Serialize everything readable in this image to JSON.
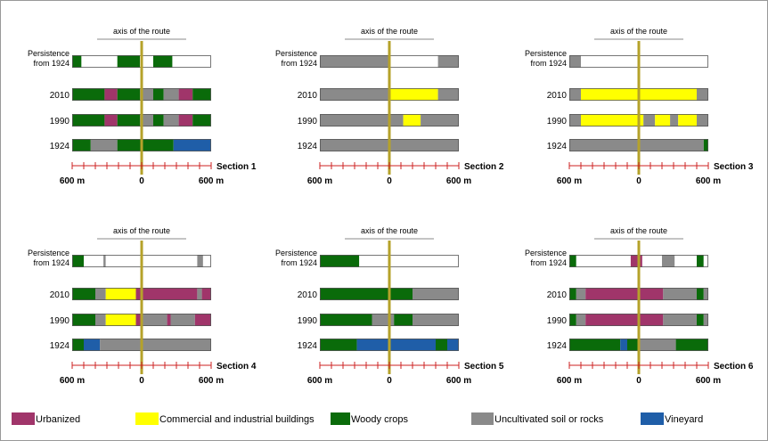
{
  "figure": {
    "axis_label": "axis of the route",
    "row_labels": [
      "Persistence\nfrom 1924",
      "2010",
      "1990",
      "1924"
    ],
    "scale_labels": {
      "left": "600 m",
      "center": "0",
      "right": "600 m"
    }
  },
  "colors": {
    "urbanized": "#a0356a",
    "commercial": "#ffff00",
    "woody": "#0a6b0a",
    "uncultivated": "#8a8a8a",
    "vineyard": "#1f5ea8",
    "empty": "#ffffff",
    "axis_line": "#b5a22a",
    "scale": "#cc2222"
  },
  "legend": [
    {
      "key": "urbanized",
      "label": "Urbanized"
    },
    {
      "key": "commercial",
      "label": "Commercial and industrial buildings"
    },
    {
      "key": "woody",
      "label": "Woody crops"
    },
    {
      "key": "uncultivated",
      "label": "Uncultivated soil or rocks"
    },
    {
      "key": "vineyard",
      "label": "Vineyard"
    }
  ],
  "sections": [
    {
      "title": "Section 1",
      "rows": {
        "persistence": [
          [
            "woody",
            -600,
            -520
          ],
          [
            "empty",
            -520,
            -210
          ],
          [
            "woody",
            -210,
            -15
          ],
          [
            "empty",
            -15,
            100
          ],
          [
            "woody",
            100,
            265
          ],
          [
            "empty",
            265,
            600
          ]
        ],
        "2010": [
          [
            "woody",
            -600,
            -320
          ],
          [
            "urbanized",
            -320,
            -210
          ],
          [
            "woody",
            -210,
            -15
          ],
          [
            "uncultivated",
            -15,
            100
          ],
          [
            "woody",
            100,
            190
          ],
          [
            "uncultivated",
            190,
            320
          ],
          [
            "urbanized",
            320,
            440
          ],
          [
            "woody",
            440,
            600
          ]
        ],
        "1990": [
          [
            "woody",
            -600,
            -320
          ],
          [
            "urbanized",
            -320,
            -210
          ],
          [
            "woody",
            -210,
            -15
          ],
          [
            "uncultivated",
            -15,
            100
          ],
          [
            "woody",
            100,
            190
          ],
          [
            "uncultivated",
            190,
            320
          ],
          [
            "urbanized",
            320,
            440
          ],
          [
            "woody",
            440,
            600
          ]
        ],
        "1924": [
          [
            "woody",
            -600,
            -440
          ],
          [
            "uncultivated",
            -440,
            -210
          ],
          [
            "woody",
            -210,
            275
          ],
          [
            "vineyard",
            275,
            600
          ]
        ]
      }
    },
    {
      "title": "Section 2",
      "rows": {
        "persistence": [
          [
            "uncultivated",
            -600,
            -10
          ],
          [
            "empty",
            -10,
            420
          ],
          [
            "uncultivated",
            420,
            600
          ]
        ],
        "2010": [
          [
            "uncultivated",
            -600,
            0
          ],
          [
            "commercial",
            0,
            420
          ],
          [
            "uncultivated",
            420,
            600
          ]
        ],
        "1990": [
          [
            "uncultivated",
            -600,
            120
          ],
          [
            "commercial",
            120,
            270
          ],
          [
            "uncultivated",
            270,
            600
          ]
        ],
        "1924": [
          [
            "uncultivated",
            -600,
            600
          ]
        ]
      }
    },
    {
      "title": "Section 3",
      "rows": {
        "persistence": [
          [
            "uncultivated",
            -600,
            -500
          ],
          [
            "empty",
            -500,
            600
          ]
        ],
        "2010": [
          [
            "uncultivated",
            -600,
            -500
          ],
          [
            "commercial",
            -500,
            500
          ],
          [
            "uncultivated",
            500,
            600
          ]
        ],
        "1990": [
          [
            "uncultivated",
            -600,
            -500
          ],
          [
            "commercial",
            -500,
            40
          ],
          [
            "uncultivated",
            40,
            140
          ],
          [
            "commercial",
            140,
            270
          ],
          [
            "uncultivated",
            270,
            340
          ],
          [
            "commercial",
            340,
            500
          ],
          [
            "uncultivated",
            500,
            600
          ]
        ],
        "1924": [
          [
            "uncultivated",
            -600,
            560
          ],
          [
            "woody",
            560,
            600
          ]
        ]
      }
    },
    {
      "title": "Section 4",
      "rows": {
        "persistence": [
          [
            "woody",
            -600,
            -500
          ],
          [
            "empty",
            -500,
            -330
          ],
          [
            "uncultivated",
            -330,
            -310
          ],
          [
            "empty",
            -310,
            480
          ],
          [
            "uncultivated",
            480,
            530
          ],
          [
            "empty",
            530,
            600
          ]
        ],
        "2010": [
          [
            "woody",
            -600,
            -400
          ],
          [
            "uncultivated",
            -400,
            -310
          ],
          [
            "commercial",
            -310,
            -50
          ],
          [
            "urbanized",
            -50,
            480
          ],
          [
            "uncultivated",
            480,
            520
          ],
          [
            "urbanized",
            520,
            600
          ]
        ],
        "1990": [
          [
            "woody",
            -600,
            -400
          ],
          [
            "uncultivated",
            -400,
            -310
          ],
          [
            "commercial",
            -310,
            -50
          ],
          [
            "urbanized",
            -50,
            0
          ],
          [
            "uncultivated",
            0,
            220
          ],
          [
            "urbanized",
            220,
            250
          ],
          [
            "uncultivated",
            250,
            460
          ],
          [
            "urbanized",
            460,
            600
          ]
        ],
        "1924": [
          [
            "woody",
            -600,
            -500
          ],
          [
            "vineyard",
            -500,
            -360
          ],
          [
            "uncultivated",
            -360,
            600
          ]
        ]
      }
    },
    {
      "title": "Section 5",
      "rows": {
        "persistence": [
          [
            "woody",
            -600,
            -260
          ],
          [
            "empty",
            -260,
            600
          ]
        ],
        "2010": [
          [
            "woody",
            -600,
            200
          ],
          [
            "uncultivated",
            200,
            600
          ]
        ],
        "1990": [
          [
            "woody",
            -600,
            -150
          ],
          [
            "uncultivated",
            -150,
            40
          ],
          [
            "woody",
            40,
            200
          ],
          [
            "uncultivated",
            200,
            600
          ]
        ],
        "1924": [
          [
            "woody",
            -600,
            -280
          ],
          [
            "vineyard",
            -280,
            400
          ],
          [
            "woody",
            400,
            500
          ],
          [
            "vineyard",
            500,
            600
          ]
        ]
      }
    },
    {
      "title": "Section 6",
      "rows": {
        "persistence": [
          [
            "woody",
            -600,
            -540
          ],
          [
            "empty",
            -540,
            -70
          ],
          [
            "urbanized",
            -70,
            30
          ],
          [
            "empty",
            30,
            200
          ],
          [
            "uncultivated",
            200,
            310
          ],
          [
            "empty",
            310,
            500
          ],
          [
            "woody",
            500,
            560
          ],
          [
            "empty",
            560,
            600
          ]
        ],
        "2010": [
          [
            "woody",
            -600,
            -540
          ],
          [
            "uncultivated",
            -540,
            -460
          ],
          [
            "urbanized",
            -460,
            210
          ],
          [
            "uncultivated",
            210,
            500
          ],
          [
            "woody",
            500,
            560
          ],
          [
            "uncultivated",
            560,
            600
          ]
        ],
        "1990": [
          [
            "woody",
            -600,
            -540
          ],
          [
            "uncultivated",
            -540,
            -460
          ],
          [
            "urbanized",
            -460,
            210
          ],
          [
            "uncultivated",
            210,
            500
          ],
          [
            "woody",
            500,
            560
          ],
          [
            "uncultivated",
            560,
            600
          ]
        ],
        "1924": [
          [
            "woody",
            -600,
            -160
          ],
          [
            "vineyard",
            -160,
            -100
          ],
          [
            "woody",
            -100,
            0
          ],
          [
            "uncultivated",
            0,
            320
          ],
          [
            "woody",
            320,
            600
          ]
        ]
      }
    }
  ]
}
